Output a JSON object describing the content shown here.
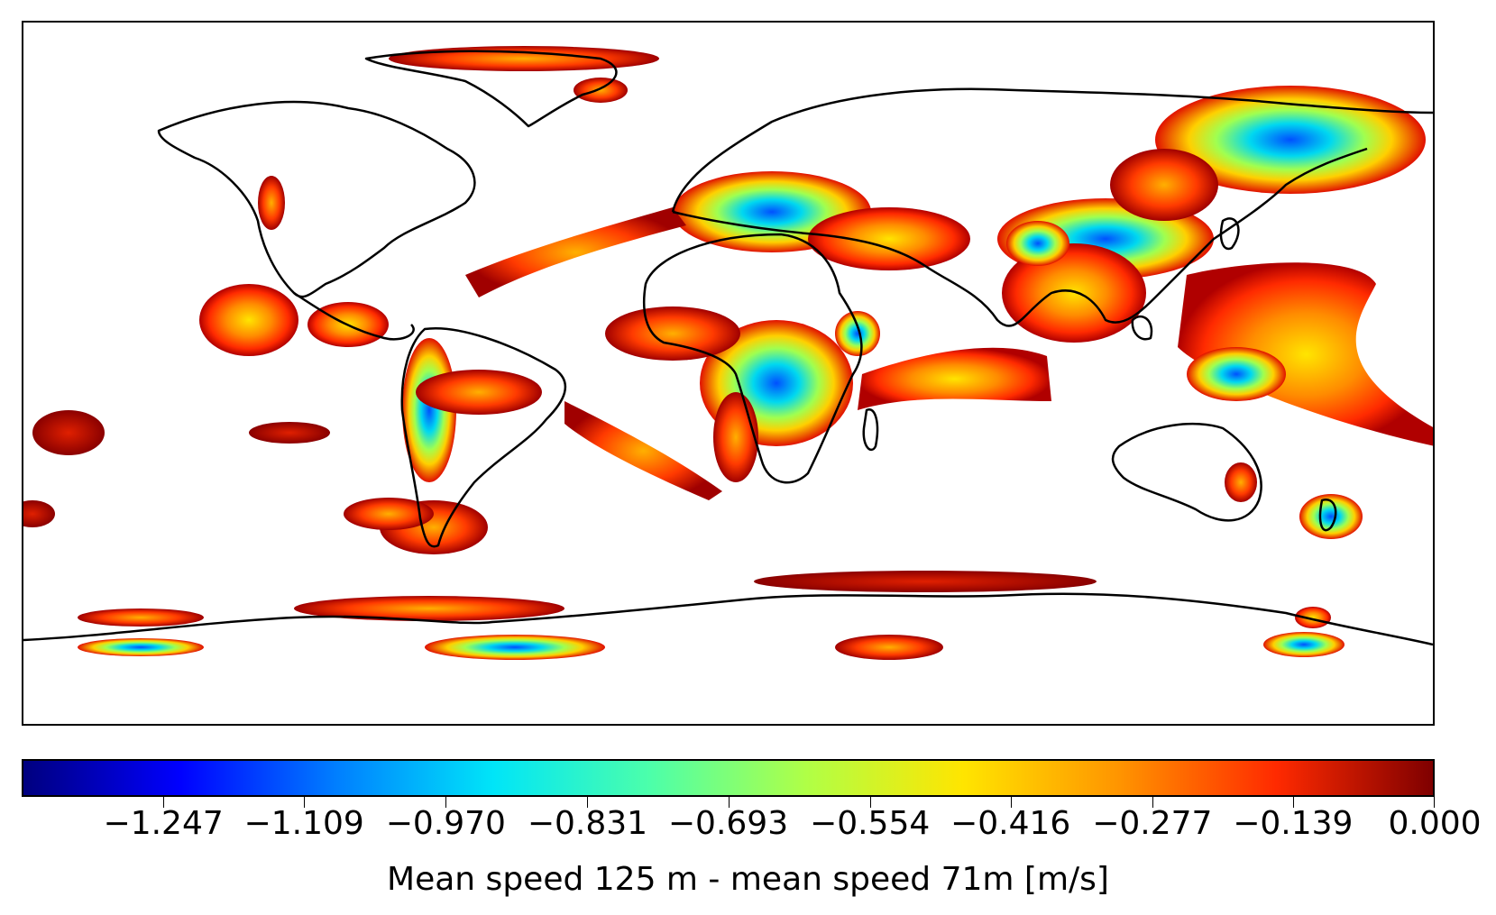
{
  "colorbar": {
    "label": "Mean speed 125 m - mean speed 71m [m/s]",
    "min": -1.386,
    "max": 0.0,
    "ticks": [
      "−1.247",
      "−1.109",
      "−0.970",
      "−0.831",
      "−0.693",
      "−0.554",
      "−0.416",
      "−0.277",
      "−0.139",
      "0.000"
    ],
    "colormap": [
      "#00007f",
      "#0000ff",
      "#007fff",
      "#00e5f8",
      "#4cffaa",
      "#b0ff46",
      "#ffe500",
      "#ff9400",
      "#ff2a00",
      "#7f0000"
    ]
  },
  "map": {
    "projection": "equirectangular",
    "colors": {
      "coastline": "#000000",
      "field_low": "#7f0000",
      "field_mid": "#ff4000",
      "field_high": "#ffe500"
    }
  }
}
